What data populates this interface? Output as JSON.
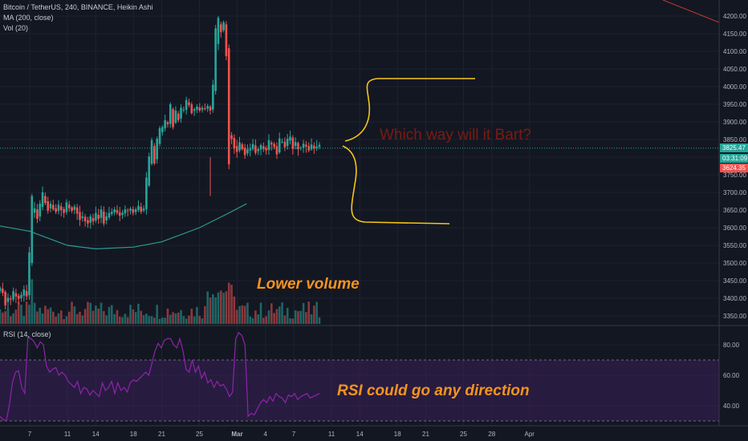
{
  "legends": {
    "main_title": "Bitcoin / TetherUS, 240, BINANCE, Heikin Ashi",
    "ma": "MA (200, close)",
    "vol": "Vol (20)",
    "rsi": "RSI (14, close)"
  },
  "annotations": {
    "bart": "Which way will it Bart?",
    "volume": "Lower volume",
    "rsi": "RSI could go any direction"
  },
  "price_tags": {
    "last": "3825.47",
    "countdown": "03:31:09",
    "ma": "3624.35"
  },
  "colors": {
    "background": "#131722",
    "up": "#26a69a",
    "down": "#ef5350",
    "ma_line": "#2a9d8f",
    "rsi_line": "#8e24aa",
    "rsi_band": "#3a1f5a",
    "sketch": "#f5c518",
    "trend_line": "#c0392b",
    "bart_text": "#7a1b12",
    "orange_text": "#f7941d"
  },
  "chart_data": [
    {
      "type": "candlestick",
      "title": "Bitcoin / TetherUS, 240, BINANCE, Heikin Ashi",
      "y_range": [
        3320,
        4230
      ],
      "y_ticks": [
        "4200.00",
        "4150.00",
        "4100.00",
        "4050.00",
        "4000.00",
        "3950.00",
        "3900.00",
        "3850.00",
        "3800.00",
        "3750.00",
        "3700.00",
        "3650.00",
        "3600.00",
        "3550.00",
        "3500.00",
        "3450.00",
        "3400.00",
        "3350.00"
      ],
      "x_ticks": [
        "7",
        "11",
        "14",
        "18",
        "21",
        "25",
        "Mar",
        "4",
        "7",
        "11",
        "14",
        "18",
        "21",
        "25",
        "28",
        "Apr"
      ],
      "grid": true,
      "close_series": [
        3430,
        3415,
        3380,
        3402,
        3396,
        3420,
        3405,
        3398,
        3410,
        3425,
        3405,
        3530,
        3690,
        3655,
        3625,
        3668,
        3700,
        3670,
        3648,
        3668,
        3652,
        3645,
        3665,
        3650,
        3642,
        3672,
        3655,
        3648,
        3660,
        3640,
        3622,
        3632,
        3618,
        3612,
        3632,
        3618,
        3642,
        3625,
        3652,
        3612,
        3632,
        3642,
        3645,
        3652,
        3642,
        3634,
        3642,
        3652,
        3648,
        3654,
        3642,
        3652,
        3662,
        3645,
        3654,
        3742,
        3802,
        3848,
        3782,
        3852,
        3882,
        3885,
        3905,
        3893,
        3950,
        3885,
        3932,
        3905,
        3940,
        3935,
        3962,
        3948,
        3925,
        3936,
        3943,
        3932,
        3940,
        3937,
        3945,
        3932,
        4005,
        4165,
        4195,
        4154,
        4182,
        4086,
        3780,
        3852,
        3824,
        3815,
        3842,
        3823,
        3806,
        3822,
        3824,
        3837,
        3812,
        3823,
        3834,
        3823,
        3819,
        3848,
        3836,
        3829,
        3808,
        3853,
        3844,
        3828,
        3852,
        3858,
        3824,
        3843,
        3822,
        3827,
        3838,
        3830,
        3819,
        3836,
        3824,
        3830,
        3835
      ],
      "volume_label": "Vol (20)",
      "annotation": "Which way will it Bart?"
    },
    {
      "type": "line",
      "series": [
        {
          "name": "MA (200, close)"
        }
      ],
      "points": [
        [
          7,
          3590
        ],
        [
          11,
          3550
        ],
        [
          14,
          3540
        ],
        [
          18,
          3545
        ],
        [
          21,
          3560
        ],
        [
          25,
          3600
        ],
        [
          28,
          3640
        ],
        [
          30,
          3668
        ]
      ]
    },
    {
      "type": "line",
      "title": "RSI (14, close)",
      "y_range": [
        30,
        90
      ],
      "y_ticks": [
        "80.00",
        "60.00",
        "40.00"
      ],
      "band": [
        30,
        70
      ],
      "values": [
        33,
        31,
        30,
        40,
        55,
        62,
        63,
        52,
        48,
        85,
        84,
        82,
        78,
        82,
        80,
        66,
        62,
        64,
        65,
        60,
        62,
        60,
        56,
        54,
        52,
        56,
        48,
        52,
        51,
        47,
        50,
        48,
        46,
        55,
        50,
        52,
        56,
        48,
        55,
        50,
        52,
        49,
        55,
        57,
        56,
        58,
        60,
        62,
        60,
        68,
        76,
        81,
        78,
        83,
        84,
        84,
        80,
        78,
        84,
        76,
        64,
        62,
        70,
        62,
        66,
        58,
        62,
        55,
        57,
        52,
        56,
        53,
        54,
        51,
        46,
        49,
        84,
        88,
        86,
        80,
        33,
        35,
        34,
        38,
        42,
        44,
        42,
        46,
        43,
        48,
        46,
        45,
        42,
        47,
        46,
        48,
        44,
        46,
        47,
        48,
        45,
        46,
        47,
        48
      ],
      "annotation": "RSI could go any direction"
    }
  ]
}
